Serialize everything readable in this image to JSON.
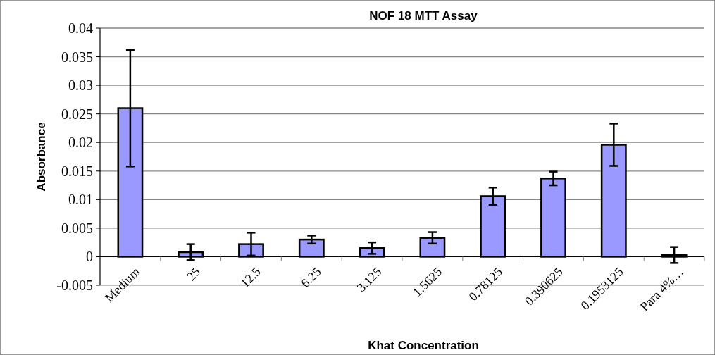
{
  "chart_data": {
    "type": "bar",
    "title": "NOF 18 MTT Assay",
    "xlabel": "Khat Concentration",
    "ylabel": "Absorbance",
    "categories": [
      "Medium",
      "25",
      "12.5",
      "6.25",
      "3.125",
      "1.5625",
      "0.78125",
      "0.390625",
      "0.1953125",
      "Para 4%…"
    ],
    "series": [
      {
        "color": "#9999ff",
        "values": [
          0.026,
          0.0008,
          0.0022,
          0.003,
          0.0015,
          0.0033,
          0.0106,
          0.0137,
          0.0196,
          0.0003
        ],
        "errors": [
          0.0102,
          0.0014,
          0.002,
          0.0007,
          0.001,
          0.001,
          0.0015,
          0.0012,
          0.0037,
          0.0014
        ]
      }
    ],
    "ylim": [
      -0.005,
      0.04
    ],
    "yticks": [
      -0.005,
      0,
      0.005,
      0.01,
      0.015,
      0.02,
      0.025,
      0.03,
      0.035,
      0.04
    ],
    "grid": "y"
  }
}
